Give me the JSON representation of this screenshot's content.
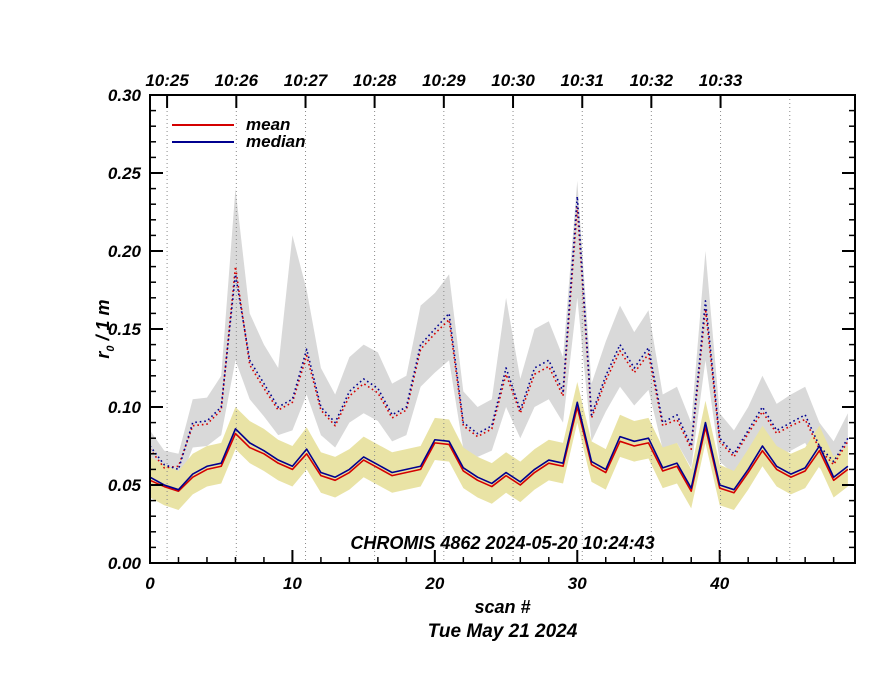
{
  "figure": {
    "annotation": "CHROMIS 4862 2024-05-20 10:24:43",
    "xlabel": "scan #",
    "date_label": "Tue May 21 2024",
    "ylabel_prefix": "r",
    "ylabel_sub": "0",
    "ylabel_rest": " / 1 m",
    "legend": [
      {
        "label": "mean",
        "color": "#d40000"
      },
      {
        "label": "median",
        "color": "#00008f"
      }
    ]
  },
  "colors": {
    "mean": "#d40000",
    "median": "#00008f",
    "gray_band": "#d9d9d9",
    "yellow_band": "#e9e3a5",
    "grid": "#8a8a8a",
    "frame": "#000000"
  },
  "chart_data": {
    "type": "line",
    "title": "CHROMIS 4862 2024-05-20 10:24:43",
    "xlabel": "scan #",
    "ylabel": "r0 / 1 m",
    "xlim": [
      0,
      49.5
    ],
    "ylim": [
      0,
      0.3
    ],
    "grid": "vertical-dotted",
    "legend_position": "top-left-inside",
    "x": [
      0,
      1,
      2,
      3,
      4,
      5,
      6,
      7,
      8,
      9,
      10,
      11,
      12,
      13,
      14,
      15,
      16,
      17,
      18,
      19,
      20,
      21,
      22,
      23,
      24,
      25,
      26,
      27,
      28,
      29,
      30,
      31,
      32,
      33,
      34,
      35,
      36,
      37,
      38,
      39,
      40,
      41,
      42,
      43,
      44,
      45,
      46,
      47,
      48,
      49
    ],
    "x_ticks": {
      "values": [
        0,
        10,
        20,
        30,
        40
      ],
      "labels": [
        "0",
        "10",
        "20",
        "30",
        "40"
      ],
      "minor_step": 2
    },
    "y_ticks": {
      "values": [
        0.0,
        0.05,
        0.1,
        0.15,
        0.2,
        0.25,
        0.3
      ],
      "labels": [
        "0.00",
        "0.05",
        "0.10",
        "0.15",
        "0.20",
        "0.25",
        "0.30"
      ],
      "minor_step": 0.01
    },
    "top_ticks": {
      "positions": [
        1.2,
        6.06,
        10.92,
        15.77,
        20.63,
        25.49,
        30.35,
        35.2,
        40.06
      ],
      "labels": [
        "10:25",
        "10:26",
        "10:27",
        "10:28",
        "10:29",
        "10:30",
        "10:31",
        "10:32",
        "10:33"
      ]
    },
    "grid_positions": [
      1.2,
      6.06,
      10.92,
      15.77,
      20.63,
      25.49,
      30.35,
      35.2,
      40.06,
      44.92
    ],
    "bands": [
      {
        "name": "scatter-band-dotted",
        "color": "#d9d9d9",
        "upper": [
          0.085,
          0.072,
          0.07,
          0.105,
          0.106,
          0.12,
          0.24,
          0.16,
          0.14,
          0.125,
          0.21,
          0.175,
          0.125,
          0.108,
          0.132,
          0.14,
          0.135,
          0.115,
          0.12,
          0.165,
          0.173,
          0.185,
          0.11,
          0.1,
          0.105,
          0.17,
          0.118,
          0.15,
          0.155,
          0.132,
          0.245,
          0.115,
          0.142,
          0.165,
          0.148,
          0.162,
          0.108,
          0.113,
          0.09,
          0.2,
          0.096,
          0.085,
          0.1,
          0.12,
          0.102,
          0.108,
          0.113,
          0.09,
          0.078,
          0.096
        ],
        "lower": [
          0.063,
          0.053,
          0.05,
          0.074,
          0.075,
          0.082,
          0.13,
          0.105,
          0.094,
          0.082,
          0.085,
          0.108,
          0.082,
          0.074,
          0.09,
          0.096,
          0.091,
          0.078,
          0.082,
          0.113,
          0.122,
          0.13,
          0.073,
          0.068,
          0.072,
          0.1,
          0.08,
          0.1,
          0.105,
          0.09,
          0.17,
          0.078,
          0.097,
          0.113,
          0.101,
          0.111,
          0.073,
          0.077,
          0.061,
          0.13,
          0.065,
          0.057,
          0.069,
          0.081,
          0.068,
          0.072,
          0.077,
          0.061,
          0.053,
          0.065
        ]
      },
      {
        "name": "scatter-band-solid",
        "color": "#e9e3a5",
        "upper": [
          0.068,
          0.063,
          0.059,
          0.07,
          0.075,
          0.077,
          0.1,
          0.091,
          0.086,
          0.079,
          0.075,
          0.087,
          0.071,
          0.068,
          0.073,
          0.081,
          0.076,
          0.071,
          0.073,
          0.075,
          0.093,
          0.092,
          0.074,
          0.068,
          0.064,
          0.071,
          0.065,
          0.073,
          0.079,
          0.077,
          0.116,
          0.078,
          0.073,
          0.095,
          0.091,
          0.093,
          0.074,
          0.077,
          0.06,
          0.104,
          0.063,
          0.059,
          0.073,
          0.088,
          0.075,
          0.07,
          0.074,
          0.088,
          0.068,
          0.075
        ],
        "lower": [
          0.042,
          0.037,
          0.034,
          0.044,
          0.049,
          0.051,
          0.073,
          0.064,
          0.059,
          0.053,
          0.049,
          0.06,
          0.045,
          0.042,
          0.047,
          0.055,
          0.05,
          0.045,
          0.047,
          0.049,
          0.066,
          0.065,
          0.048,
          0.042,
          0.038,
          0.045,
          0.039,
          0.047,
          0.053,
          0.051,
          0.09,
          0.052,
          0.047,
          0.068,
          0.065,
          0.067,
          0.048,
          0.051,
          0.035,
          0.077,
          0.037,
          0.034,
          0.047,
          0.062,
          0.049,
          0.044,
          0.048,
          0.062,
          0.042,
          0.049
        ]
      }
    ],
    "series": [
      {
        "name": "mean (dotted)",
        "color": "#d40000",
        "style": "dotted",
        "values": [
          0.073,
          0.061,
          0.062,
          0.088,
          0.089,
          0.098,
          0.19,
          0.127,
          0.112,
          0.098,
          0.103,
          0.133,
          0.098,
          0.088,
          0.107,
          0.115,
          0.109,
          0.093,
          0.098,
          0.137,
          0.147,
          0.156,
          0.088,
          0.081,
          0.086,
          0.121,
          0.096,
          0.121,
          0.126,
          0.107,
          0.228,
          0.093,
          0.117,
          0.136,
          0.122,
          0.134,
          0.088,
          0.092,
          0.073,
          0.163,
          0.078,
          0.068,
          0.083,
          0.097,
          0.083,
          0.088,
          0.092,
          0.073,
          0.063,
          0.078
        ]
      },
      {
        "name": "median (dotted)",
        "color": "#00008f",
        "style": "dotted",
        "values": [
          0.075,
          0.063,
          0.06,
          0.09,
          0.091,
          0.1,
          0.185,
          0.13,
          0.115,
          0.1,
          0.105,
          0.137,
          0.1,
          0.09,
          0.11,
          0.118,
          0.112,
          0.095,
          0.1,
          0.14,
          0.15,
          0.16,
          0.09,
          0.083,
          0.088,
          0.125,
          0.098,
          0.125,
          0.13,
          0.11,
          0.235,
          0.095,
          0.12,
          0.14,
          0.125,
          0.138,
          0.09,
          0.095,
          0.075,
          0.168,
          0.08,
          0.07,
          0.085,
          0.1,
          0.085,
          0.09,
          0.095,
          0.075,
          0.065,
          0.08
        ]
      },
      {
        "name": "mean",
        "color": "#d40000",
        "style": "solid",
        "values": [
          0.053,
          0.049,
          0.046,
          0.055,
          0.06,
          0.062,
          0.083,
          0.074,
          0.07,
          0.064,
          0.06,
          0.07,
          0.056,
          0.053,
          0.058,
          0.066,
          0.061,
          0.056,
          0.058,
          0.06,
          0.077,
          0.076,
          0.059,
          0.053,
          0.049,
          0.056,
          0.05,
          0.058,
          0.064,
          0.062,
          0.1,
          0.063,
          0.058,
          0.078,
          0.075,
          0.077,
          0.059,
          0.062,
          0.046,
          0.087,
          0.048,
          0.045,
          0.058,
          0.072,
          0.06,
          0.055,
          0.059,
          0.072,
          0.053,
          0.06
        ]
      },
      {
        "name": "median",
        "color": "#00008f",
        "style": "solid",
        "values": [
          0.055,
          0.05,
          0.047,
          0.057,
          0.062,
          0.064,
          0.086,
          0.077,
          0.072,
          0.066,
          0.062,
          0.073,
          0.058,
          0.055,
          0.06,
          0.068,
          0.063,
          0.058,
          0.06,
          0.062,
          0.079,
          0.078,
          0.061,
          0.055,
          0.051,
          0.058,
          0.052,
          0.06,
          0.066,
          0.064,
          0.103,
          0.065,
          0.06,
          0.081,
          0.078,
          0.08,
          0.061,
          0.064,
          0.048,
          0.09,
          0.05,
          0.047,
          0.06,
          0.075,
          0.062,
          0.057,
          0.061,
          0.075,
          0.055,
          0.062
        ]
      }
    ]
  }
}
